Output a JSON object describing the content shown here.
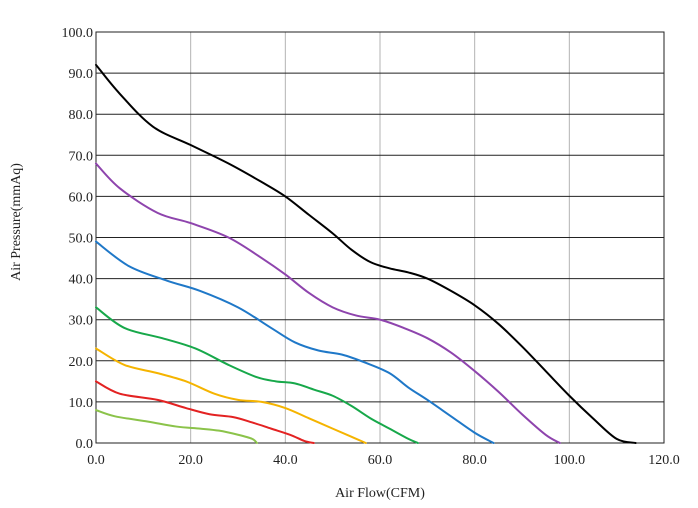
{
  "chart_data": {
    "type": "line",
    "title": "",
    "xlabel": "Air Flow(CFM)",
    "ylabel": "Air Pressure(mmAq)",
    "xlim": [
      0,
      120
    ],
    "ylim": [
      0,
      100
    ],
    "x_ticks": [
      "0.0",
      "20.0",
      "40.0",
      "60.0",
      "80.0",
      "100.0",
      "120.0"
    ],
    "y_ticks": [
      "0.0",
      "10.0",
      "20.0",
      "30.0",
      "40.0",
      "50.0",
      "60.0",
      "70.0",
      "80.0",
      "90.0",
      "100.0"
    ],
    "grid": true,
    "legend": "none",
    "series": [
      {
        "name": "curve-black",
        "color": "#000000",
        "x": [
          0,
          5,
          12,
          20,
          28,
          35,
          40,
          45,
          50,
          54,
          58,
          62,
          66,
          70,
          75,
          80,
          85,
          90,
          95,
          100,
          105,
          110,
          114
        ],
        "y": [
          92,
          85,
          77,
          72.5,
          68,
          63.5,
          60,
          55.5,
          51,
          47,
          44,
          42.5,
          41.5,
          40,
          37,
          33.5,
          29,
          23.5,
          17.5,
          11.5,
          6,
          1,
          0
        ]
      },
      {
        "name": "curve-purple",
        "color": "#8e44ad",
        "x": [
          0,
          5,
          13,
          20,
          28,
          35,
          40,
          45,
          50,
          55,
          60,
          65,
          70,
          75,
          80,
          85,
          90,
          95,
          98
        ],
        "y": [
          68,
          62,
          56,
          53.5,
          50,
          45,
          41,
          36.5,
          33,
          31,
          30,
          28,
          25.5,
          22,
          17.5,
          12.5,
          7,
          2,
          0
        ]
      },
      {
        "name": "curve-blue",
        "color": "#1f78c8",
        "x": [
          0,
          7,
          15,
          22,
          30,
          37,
          42,
          47,
          52,
          57,
          62,
          66,
          70,
          75,
          80,
          84
        ],
        "y": [
          49,
          43,
          39.5,
          37,
          33,
          28,
          24.5,
          22.5,
          21.5,
          19.5,
          17,
          13.5,
          10.5,
          6.5,
          2.5,
          0
        ]
      },
      {
        "name": "curve-green",
        "color": "#17a84a",
        "x": [
          0,
          6,
          14,
          21,
          28,
          34,
          38,
          42,
          46,
          50,
          54,
          58,
          62,
          66,
          68
        ],
        "y": [
          33,
          28,
          25.5,
          23,
          19,
          16,
          15,
          14.5,
          13,
          11.5,
          9,
          6,
          3.5,
          1,
          0
        ]
      },
      {
        "name": "curve-yellow",
        "color": "#f5b400",
        "x": [
          0,
          6,
          13,
          19,
          25,
          30,
          35,
          40,
          45,
          50,
          54,
          57
        ],
        "y": [
          23,
          19,
          17,
          15,
          12,
          10.5,
          10,
          8.5,
          6,
          3.5,
          1.5,
          0
        ]
      },
      {
        "name": "curve-red",
        "color": "#e32222",
        "x": [
          0,
          5,
          13,
          19,
          24,
          29,
          33,
          37,
          41,
          44,
          46
        ],
        "y": [
          15,
          12,
          10.5,
          8.5,
          7,
          6.3,
          5,
          3.5,
          2,
          0.5,
          0
        ]
      },
      {
        "name": "curve-light-green",
        "color": "#8bc34a",
        "x": [
          0,
          4,
          11,
          17,
          22,
          26,
          30,
          33,
          34
        ],
        "y": [
          8,
          6.5,
          5.2,
          4,
          3.5,
          3,
          2,
          1,
          0
        ]
      }
    ]
  }
}
